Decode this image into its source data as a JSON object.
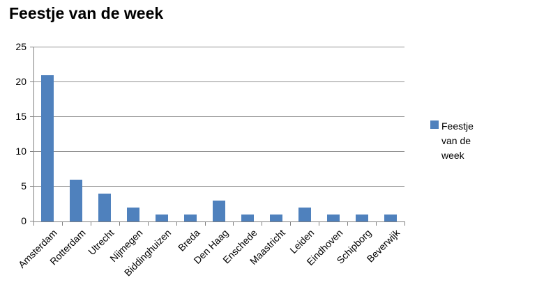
{
  "chart_data": {
    "type": "bar",
    "title": "Feestje van de week",
    "categories": [
      "Amsterdam",
      "Rotterdam",
      "Utrecht",
      "Nijmegen",
      "Biddinghuizen",
      "Breda",
      "Den Haag",
      "Enschede",
      "Maastricht",
      "Leiden",
      "Eindhoven",
      "Schipborg",
      "Beverwijk"
    ],
    "values": [
      21,
      6,
      4,
      2,
      1,
      1,
      3,
      1,
      1,
      2,
      1,
      1,
      1
    ],
    "series_label": "Feestje van de week",
    "xlabel": "",
    "ylabel": "",
    "ylim": [
      0,
      25
    ],
    "yticks": [
      0,
      5,
      10,
      15,
      20,
      25
    ],
    "grid": "horizontal",
    "legend_position": "right",
    "bar_color": "#4f81bd",
    "gridline_color": "#919191",
    "axis_color": "#808080",
    "text_color": "#000000"
  }
}
